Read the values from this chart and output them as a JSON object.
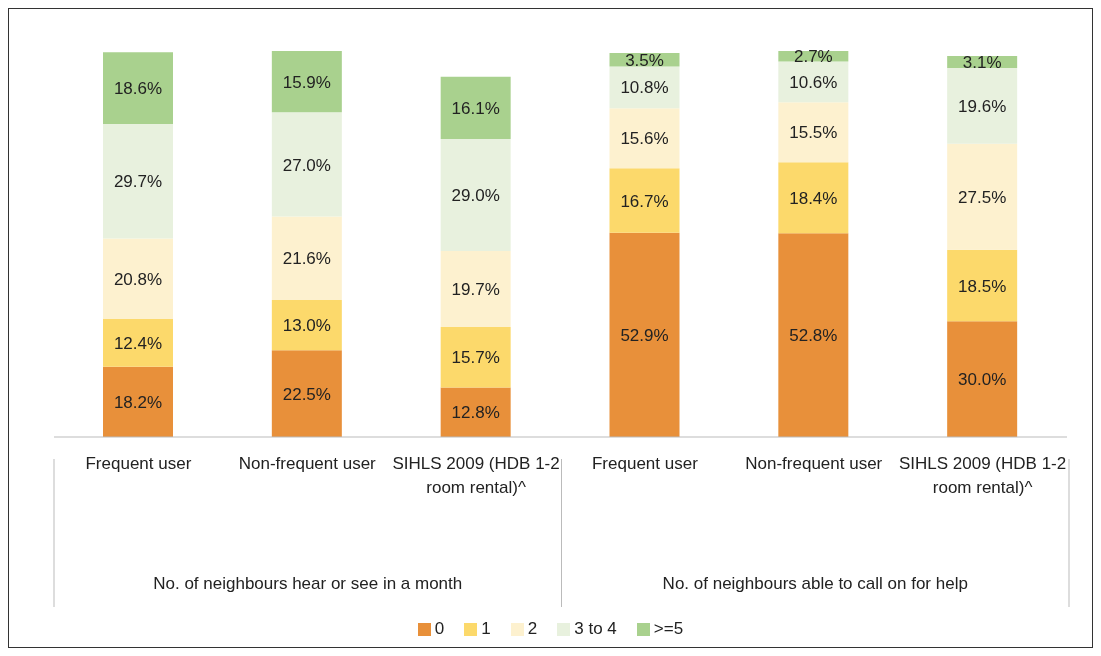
{
  "chart_data": {
    "type": "bar",
    "stacked": true,
    "categories": [
      "Frequent user",
      "Non-frequent user",
      "SIHLS 2009 (HDB 1-2 room rental)^",
      "Frequent user",
      "Non-frequent user",
      "SIHLS 2009 (HDB 1-2 room rental)^"
    ],
    "series": [
      {
        "name": "0",
        "color": "#e8903a",
        "values": [
          18.2,
          22.5,
          12.8,
          52.9,
          52.8,
          30.0
        ],
        "value_labels": [
          "18.2%",
          "22.5%",
          "12.8%",
          "52.9%",
          "52.8%",
          "30.0%"
        ]
      },
      {
        "name": "1",
        "color": "#fcd96b",
        "values": [
          12.4,
          13.0,
          15.7,
          16.7,
          18.4,
          18.5
        ],
        "value_labels": [
          "12.4%",
          "13.0%",
          "15.7%",
          "16.7%",
          "18.4%",
          "18.5%"
        ]
      },
      {
        "name": "2",
        "color": "#fdf1cf",
        "values": [
          20.8,
          21.6,
          19.7,
          15.6,
          15.5,
          27.5
        ],
        "value_labels": [
          "20.8%",
          "21.6%",
          "19.7%",
          "15.6%",
          "15.5%",
          "27.5%"
        ]
      },
      {
        "name": "3 to 4",
        "color": "#e8f1de",
        "values": [
          29.7,
          27.0,
          29.0,
          10.8,
          10.6,
          19.6
        ],
        "value_labels": [
          "29.7%",
          "27.0%",
          "29.0%",
          "10.8%",
          "10.6%",
          "19.6%"
        ]
      },
      {
        "name": ">=5",
        "color": "#a9d18e",
        "values": [
          18.6,
          15.9,
          16.1,
          3.5,
          2.7,
          3.1
        ],
        "value_labels": [
          "18.6%",
          "15.9%",
          "16.1%",
          "3.5%",
          "2.7%",
          "3.1%"
        ]
      }
    ],
    "ylim": [
      0,
      100
    ],
    "tick_labels": "x",
    "grid": false,
    "legend": "bottom",
    "annotations": [
      "No. of neighbours hear or see in a month",
      "No. of neighbours able to call on for help"
    ]
  }
}
